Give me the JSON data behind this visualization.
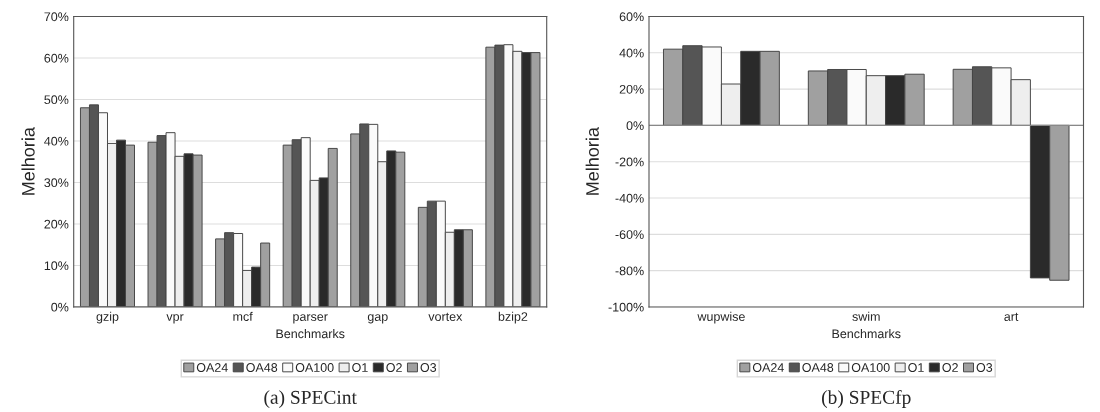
{
  "chart_data": [
    {
      "type": "bar",
      "title": "(a) SPECint",
      "xlabel": "Benchmarks",
      "ylabel": "Melhoria",
      "categories": [
        "gzip",
        "vpr",
        "mcf",
        "parser",
        "gap",
        "vortex",
        "bzip2"
      ],
      "series": [
        {
          "name": "OA24",
          "color": "#a0a0a0",
          "values": [
            48,
            39.7,
            16.4,
            39,
            41.7,
            24,
            62.6
          ]
        },
        {
          "name": "OA48",
          "color": "#555555",
          "values": [
            48.7,
            41.3,
            17.9,
            40.3,
            44.1,
            25.5,
            63.1
          ]
        },
        {
          "name": "OA100",
          "color": "#fafafa",
          "values": [
            46.8,
            42,
            17.7,
            40.8,
            44,
            25.5,
            63.2
          ]
        },
        {
          "name": "O1",
          "color": "#eeeeee",
          "values": [
            39.4,
            36.3,
            8.8,
            30.5,
            35,
            18,
            61.6
          ]
        },
        {
          "name": "O2",
          "color": "#2a2a2a",
          "values": [
            40.2,
            36.9,
            9.6,
            31.1,
            37.6,
            18.6,
            61.3
          ]
        },
        {
          "name": "O3",
          "color": "#a0a0a0",
          "values": [
            39,
            36.6,
            15.4,
            38.2,
            37.3,
            18.6,
            61.3
          ]
        }
      ],
      "ylim": [
        0,
        70
      ],
      "yticks": [
        {
          "value": 0,
          "label": "0%"
        },
        {
          "value": 10,
          "label": "10%"
        },
        {
          "value": 20,
          "label": "20%"
        },
        {
          "value": 30,
          "label": "30%"
        },
        {
          "value": 40,
          "label": "40%"
        },
        {
          "value": 50,
          "label": "50%"
        },
        {
          "value": 60,
          "label": "60%"
        },
        {
          "value": 70,
          "label": "70%"
        }
      ],
      "grid": "y",
      "legend": "bottom"
    },
    {
      "type": "bar",
      "title": "(b) SPECfp",
      "xlabel": "Benchmarks",
      "ylabel": "Melhoria",
      "categories": [
        "wupwise",
        "swim",
        "art"
      ],
      "series": [
        {
          "name": "OA24",
          "color": "#a0a0a0",
          "values": [
            42,
            30,
            30.9
          ]
        },
        {
          "name": "OA48",
          "color": "#555555",
          "values": [
            43.9,
            30.8,
            32.3
          ]
        },
        {
          "name": "OA100",
          "color": "#fafafa",
          "values": [
            43.2,
            30.8,
            31.7
          ]
        },
        {
          "name": "O1",
          "color": "#eeeeee",
          "values": [
            22.8,
            27.4,
            25.2
          ]
        },
        {
          "name": "O2",
          "color": "#2a2a2a",
          "values": [
            40.8,
            27.4,
            -84
          ]
        },
        {
          "name": "O3",
          "color": "#a0a0a0",
          "values": [
            40.8,
            28.2,
            -85.3
          ]
        }
      ],
      "ylim": [
        -100,
        60
      ],
      "yticks": [
        {
          "value": -100,
          "label": "-100%"
        },
        {
          "value": -80,
          "label": "-80%"
        },
        {
          "value": -60,
          "label": "-60%"
        },
        {
          "value": -40,
          "label": "-40%"
        },
        {
          "value": -20,
          "label": "-20%"
        },
        {
          "value": 0,
          "label": "0%"
        },
        {
          "value": 20,
          "label": "20%"
        },
        {
          "value": 40,
          "label": "40%"
        },
        {
          "value": 60,
          "label": "60%"
        }
      ],
      "grid": "y",
      "legend": "bottom"
    }
  ]
}
